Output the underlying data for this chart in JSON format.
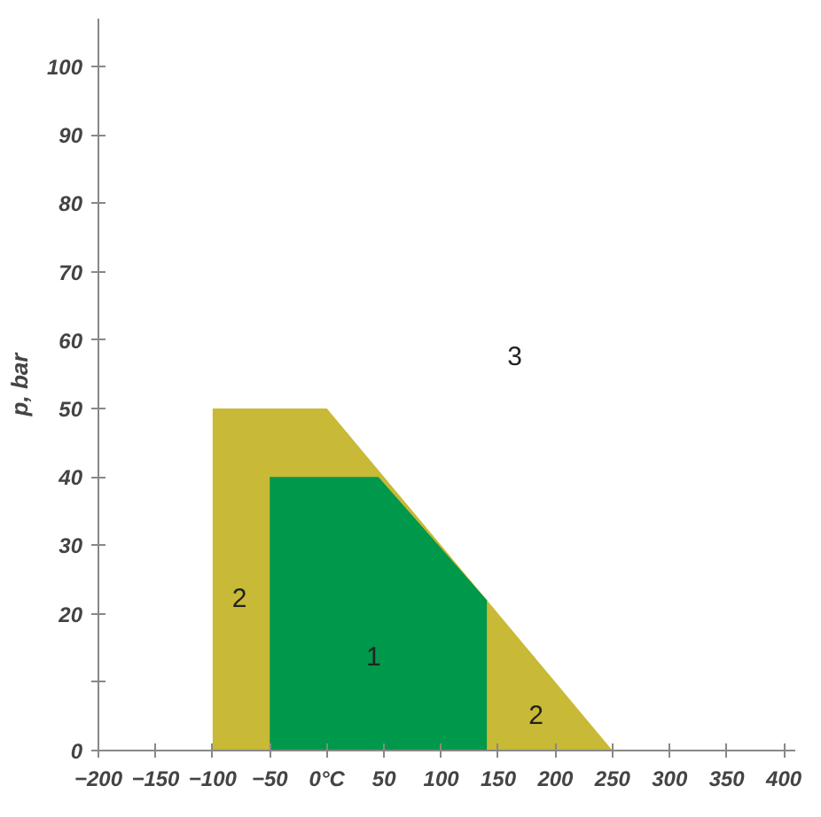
{
  "chart_data": {
    "type": "area",
    "ylabel": "p, bar",
    "xlim": [
      -200,
      410
    ],
    "ylim": [
      0,
      107
    ],
    "xticks": [
      -200,
      -150,
      -100,
      -50,
      {
        "value": 0,
        "label": "0°C"
      },
      50,
      100,
      150,
      200,
      250,
      300,
      350,
      400
    ],
    "yticks": [
      0,
      {
        "value": 10,
        "label": null
      },
      20,
      30,
      40,
      50,
      60,
      70,
      80,
      90,
      100
    ],
    "series": [
      {
        "color": "#c8b936",
        "x": [
          -100,
          0,
          250
        ],
        "values": [
          50,
          50,
          0
        ]
      },
      {
        "color": "#00984a",
        "x": [
          -50,
          45,
          140
        ],
        "values": [
          40,
          40,
          22
        ]
      }
    ],
    "annotations": [
      "1",
      "2",
      "2",
      "3"
    ],
    "grid": false
  }
}
